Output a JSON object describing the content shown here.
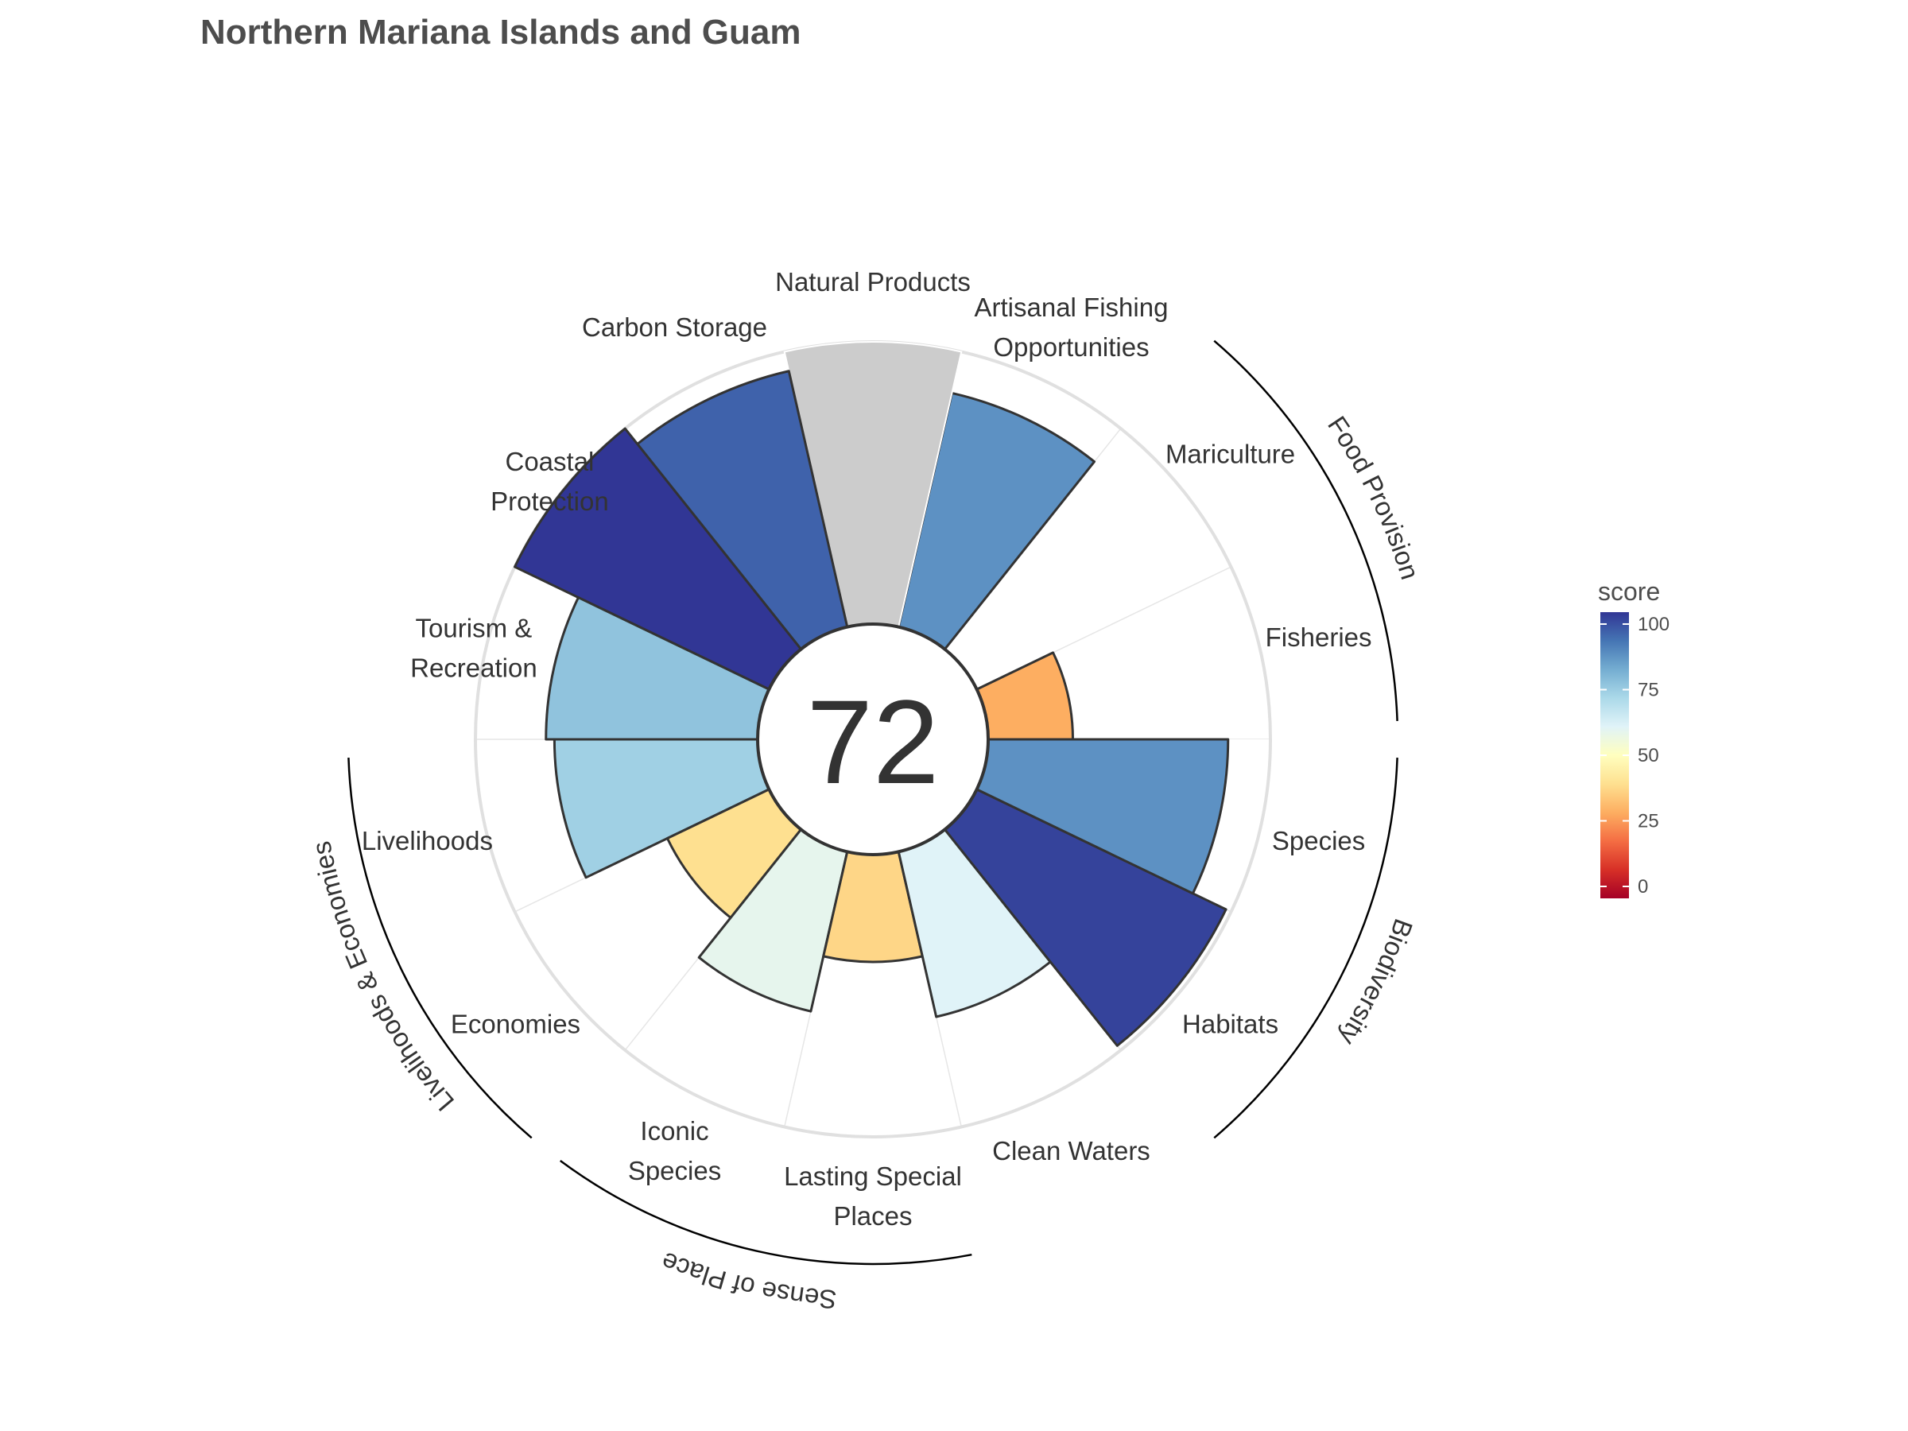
{
  "title": "Northern Mariana Islands and Guam",
  "center_score": "72",
  "legend": {
    "title": "score",
    "ticks": [
      "0",
      "25",
      "50",
      "75",
      "100"
    ]
  },
  "groups": [
    {
      "label": "Food Provision",
      "members": [
        "Fisheries",
        "Mariculture"
      ]
    },
    {
      "label": "Biodiversity",
      "members": [
        "Species",
        "Habitats"
      ]
    },
    {
      "label": "Sense of Place",
      "members": [
        "Iconic Species",
        "Lasting Special Places"
      ]
    },
    {
      "label": "Livelihoods & Economies",
      "members": [
        "Economies",
        "Livelihoods"
      ]
    }
  ],
  "chart_data": {
    "type": "polar-bar",
    "title": "Northern Mariana Islands and Guam",
    "center_value": 72,
    "scale": {
      "min": 0,
      "max": 100
    },
    "colorscale": "RdYlBu",
    "goals": [
      {
        "name": "Fisheries",
        "label_lines": [
          "Fisheries"
        ],
        "score": 30
      },
      {
        "name": "Mariculture",
        "label_lines": [
          "Mariculture"
        ],
        "score": null
      },
      {
        "name": "Artisanal Fishing Opportunities",
        "label_lines": [
          "Artisanal Fishing",
          "Opportunities"
        ],
        "score": 85
      },
      {
        "name": "Natural Products",
        "label_lines": [
          "Natural Products"
        ],
        "score": null
      },
      {
        "name": "Carbon Storage",
        "label_lines": [
          "Carbon Storage"
        ],
        "score": 93
      },
      {
        "name": "Coastal Protection",
        "label_lines": [
          "Coastal",
          "Protection"
        ],
        "score": 100
      },
      {
        "name": "Tourism & Recreation",
        "label_lines": [
          "Tourism &",
          "Recreation"
        ],
        "score": 75
      },
      {
        "name": "Livelihoods",
        "label_lines": [
          "Livelihoods"
        ],
        "score": 72
      },
      {
        "name": "Economies",
        "label_lines": [
          "Economies"
        ],
        "score": 40
      },
      {
        "name": "Iconic Species",
        "label_lines": [
          "Iconic",
          "Species"
        ],
        "score": 58
      },
      {
        "name": "Lasting Special Places",
        "label_lines": [
          "Lasting Special",
          "Places"
        ],
        "score": 38
      },
      {
        "name": "Clean Waters",
        "label_lines": [
          "Clean Waters"
        ],
        "score": 60
      },
      {
        "name": "Habitats",
        "label_lines": [
          "Habitats"
        ],
        "score": 98
      },
      {
        "name": "Species",
        "label_lines": [
          "Species"
        ],
        "score": 85
      }
    ]
  }
}
